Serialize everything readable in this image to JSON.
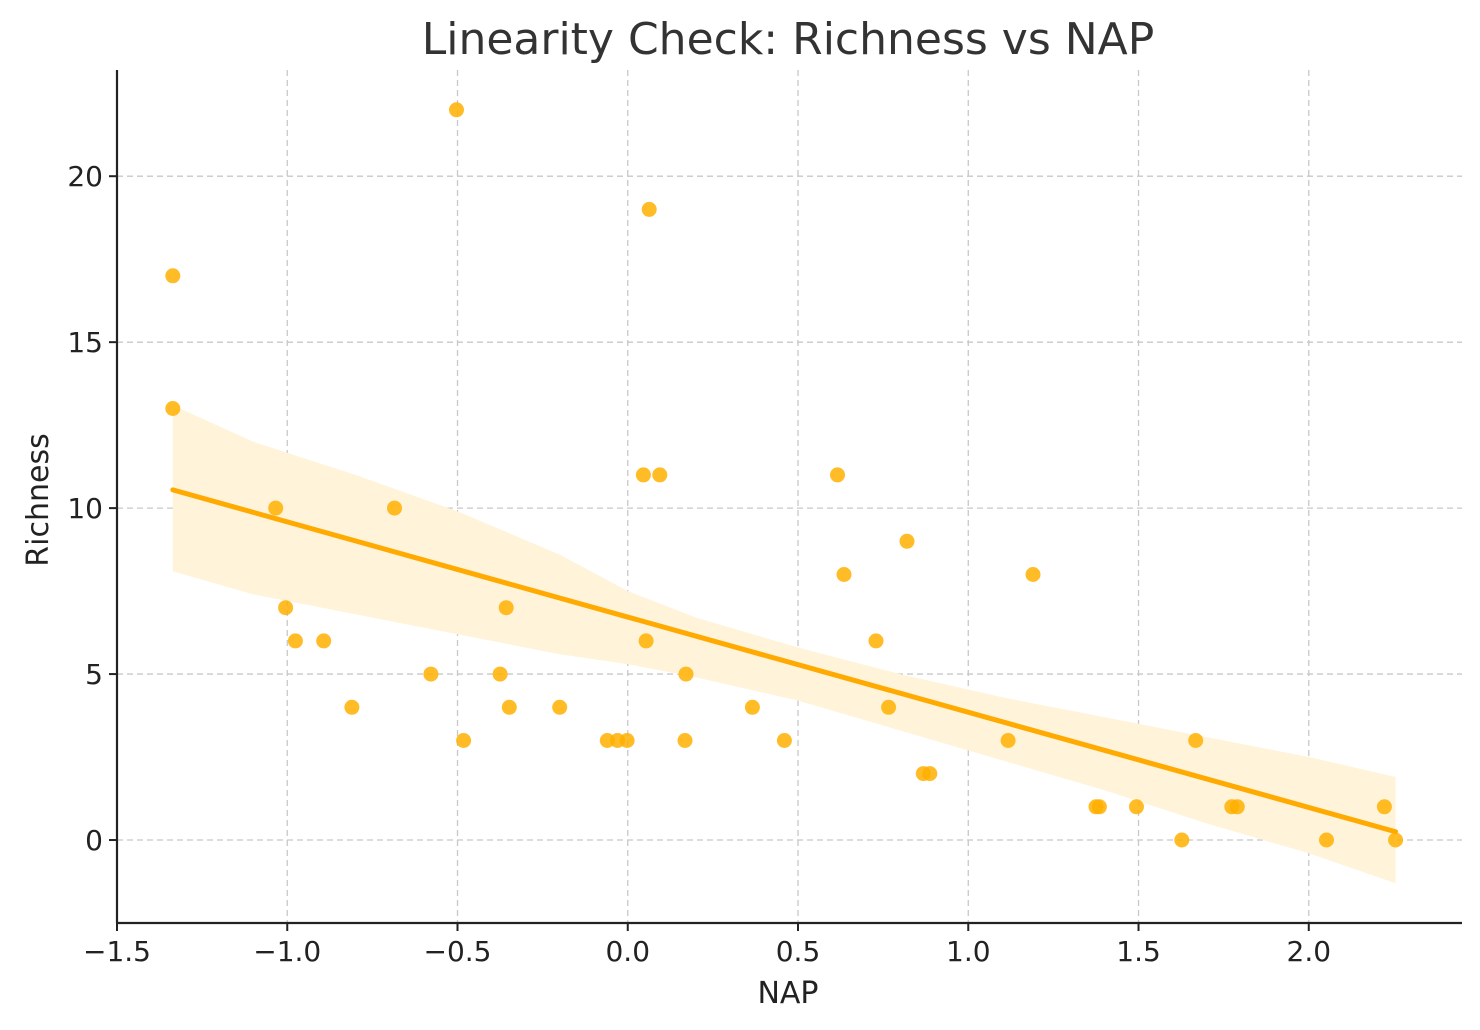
{
  "chart_data": {
    "type": "scatter",
    "title": "Linearity Check: Richness vs NAP",
    "xlabel": "NAP",
    "ylabel": "Richness",
    "xlim": [
      -1.5,
      2.45
    ],
    "ylim": [
      -2.5,
      23.2
    ],
    "xticks": [
      -1.5,
      -1.0,
      -0.5,
      0.0,
      0.5,
      1.0,
      1.5,
      2.0
    ],
    "xtick_labels": [
      "−1.5",
      "−1.0",
      "−0.5",
      "0.0",
      "0.5",
      "1.0",
      "1.5",
      "2.0"
    ],
    "yticks": [
      0,
      5,
      10,
      15,
      20
    ],
    "ytick_labels": [
      "0",
      "5",
      "10",
      "15",
      "20"
    ],
    "grid": true,
    "colors": {
      "points": "#FFB000",
      "line": "#FFAA00",
      "band": "#FFF3D9"
    },
    "points": [
      [
        -1.336,
        17
      ],
      [
        -1.336,
        13
      ],
      [
        -1.034,
        10
      ],
      [
        -1.005,
        7
      ],
      [
        -0.976,
        6
      ],
      [
        -0.893,
        6
      ],
      [
        -0.81,
        4
      ],
      [
        -0.685,
        10
      ],
      [
        -0.578,
        5
      ],
      [
        -0.503,
        22
      ],
      [
        -0.482,
        3
      ],
      [
        -0.375,
        5
      ],
      [
        -0.357,
        7
      ],
      [
        -0.348,
        4
      ],
      [
        -0.2,
        4
      ],
      [
        -0.06,
        3
      ],
      [
        -0.03,
        3
      ],
      [
        -0.002,
        3
      ],
      [
        0.046,
        11
      ],
      [
        0.054,
        6
      ],
      [
        0.063,
        19
      ],
      [
        0.094,
        11
      ],
      [
        0.168,
        3
      ],
      [
        0.171,
        5
      ],
      [
        0.366,
        4
      ],
      [
        0.46,
        3
      ],
      [
        0.616,
        11
      ],
      [
        0.635,
        8
      ],
      [
        0.729,
        6
      ],
      [
        0.766,
        4
      ],
      [
        0.82,
        9
      ],
      [
        0.868,
        2
      ],
      [
        0.887,
        2
      ],
      [
        1.117,
        3
      ],
      [
        1.19,
        8
      ],
      [
        1.375,
        1
      ],
      [
        1.385,
        1
      ],
      [
        1.494,
        1
      ],
      [
        1.627,
        0
      ],
      [
        1.668,
        3
      ],
      [
        1.774,
        1
      ],
      [
        1.79,
        1
      ],
      [
        2.052,
        0
      ],
      [
        2.222,
        1
      ],
      [
        2.255,
        0
      ]
    ],
    "regression": {
      "x": [
        -1.336,
        2.255
      ],
      "y": [
        10.55,
        0.25
      ]
    },
    "confidence_band": {
      "x": [
        -1.336,
        -1.1,
        -0.8,
        -0.5,
        -0.2,
        0.0,
        0.2,
        0.5,
        0.8,
        1.1,
        1.4,
        1.7,
        2.0,
        2.255
      ],
      "upper": [
        13.1,
        12.0,
        11.0,
        9.9,
        8.6,
        7.5,
        6.7,
        5.8,
        5.0,
        4.3,
        3.7,
        3.1,
        2.5,
        1.9
      ],
      "lower": [
        8.1,
        7.4,
        6.8,
        6.2,
        5.6,
        5.3,
        4.9,
        4.2,
        3.3,
        2.4,
        1.5,
        0.5,
        -0.4,
        -1.3
      ]
    }
  }
}
